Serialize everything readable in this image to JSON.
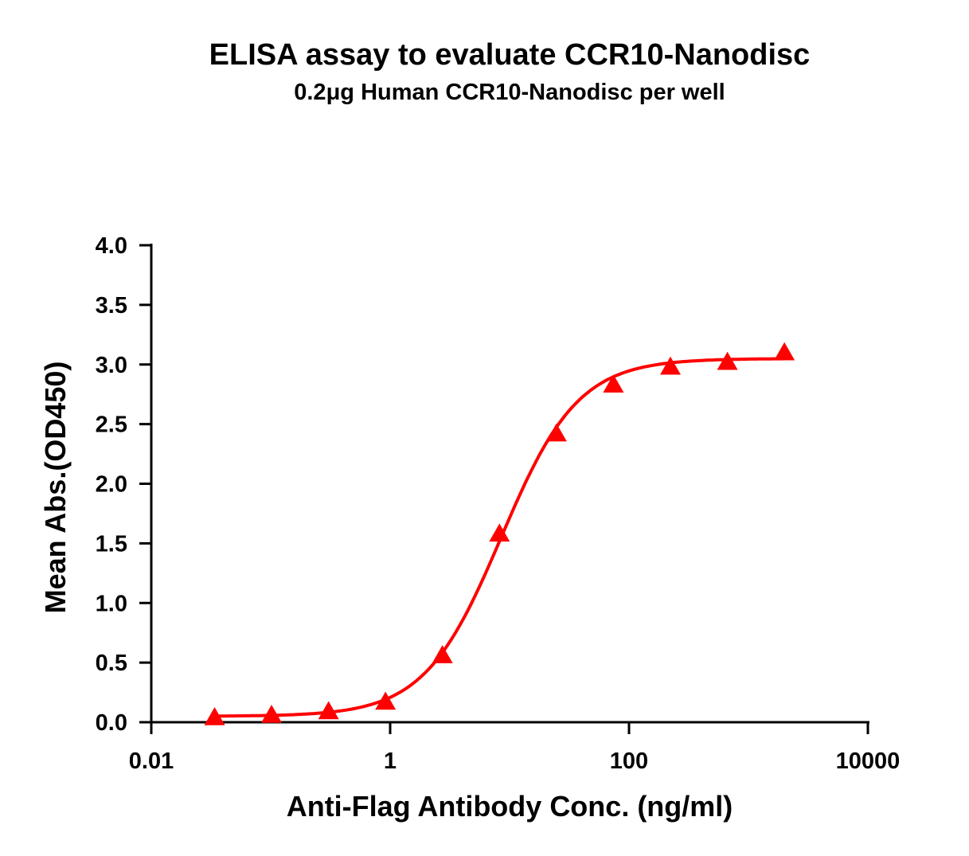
{
  "chart_data": {
    "type": "scatter",
    "title": "ELISA assay to evaluate CCR10-Nanodisc",
    "subtitle": "0.2μg Human CCR10-Nanodisc per well",
    "xlabel": "Anti-Flag Antibody Conc. (ng/ml)",
    "ylabel": "Mean Abs.(OD450)",
    "xscale": "log",
    "xlim": [
      0.01,
      10000
    ],
    "ylim": [
      0,
      4
    ],
    "xticks": [
      "0.01",
      "1",
      "100",
      "10000"
    ],
    "yticks": [
      "0.0",
      "0.5",
      "1.0",
      "1.5",
      "2.0",
      "2.5",
      "3.0",
      "3.5",
      "4.0"
    ],
    "grid": false,
    "marker": "triangle",
    "color": "#ff0000",
    "fit_curve": "sigmoidal",
    "x": [
      0.0339,
      0.1016,
      0.305,
      0.914,
      2.74,
      8.23,
      24.69,
      74.07,
      222.2,
      666.7,
      2000
    ],
    "y": [
      0.04,
      0.06,
      0.09,
      0.17,
      0.56,
      1.58,
      2.42,
      2.83,
      2.98,
      3.02,
      3.1
    ]
  }
}
